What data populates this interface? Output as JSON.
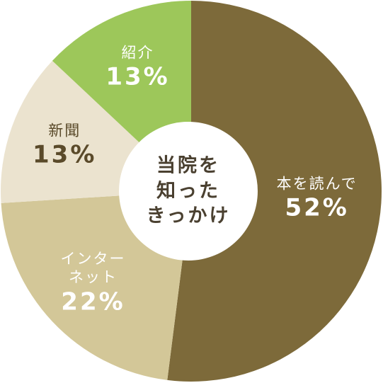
{
  "chart_data": {
    "type": "donut",
    "title": [
      "当院を",
      "知った",
      "きっかけ"
    ],
    "categories": [
      "本を読んで",
      "インターネット",
      "新聞",
      "紹介"
    ],
    "values": [
      52,
      22,
      13,
      13
    ],
    "value_labels": [
      "52%",
      "22%",
      "13%",
      "13%"
    ],
    "colors": [
      "#7d6a3a",
      "#d3c798",
      "#ebe3cf",
      "#9dc75a"
    ],
    "label_colors": [
      "#ffffff",
      "#ffffff",
      "#5a4a2a",
      "#ffffff"
    ]
  }
}
